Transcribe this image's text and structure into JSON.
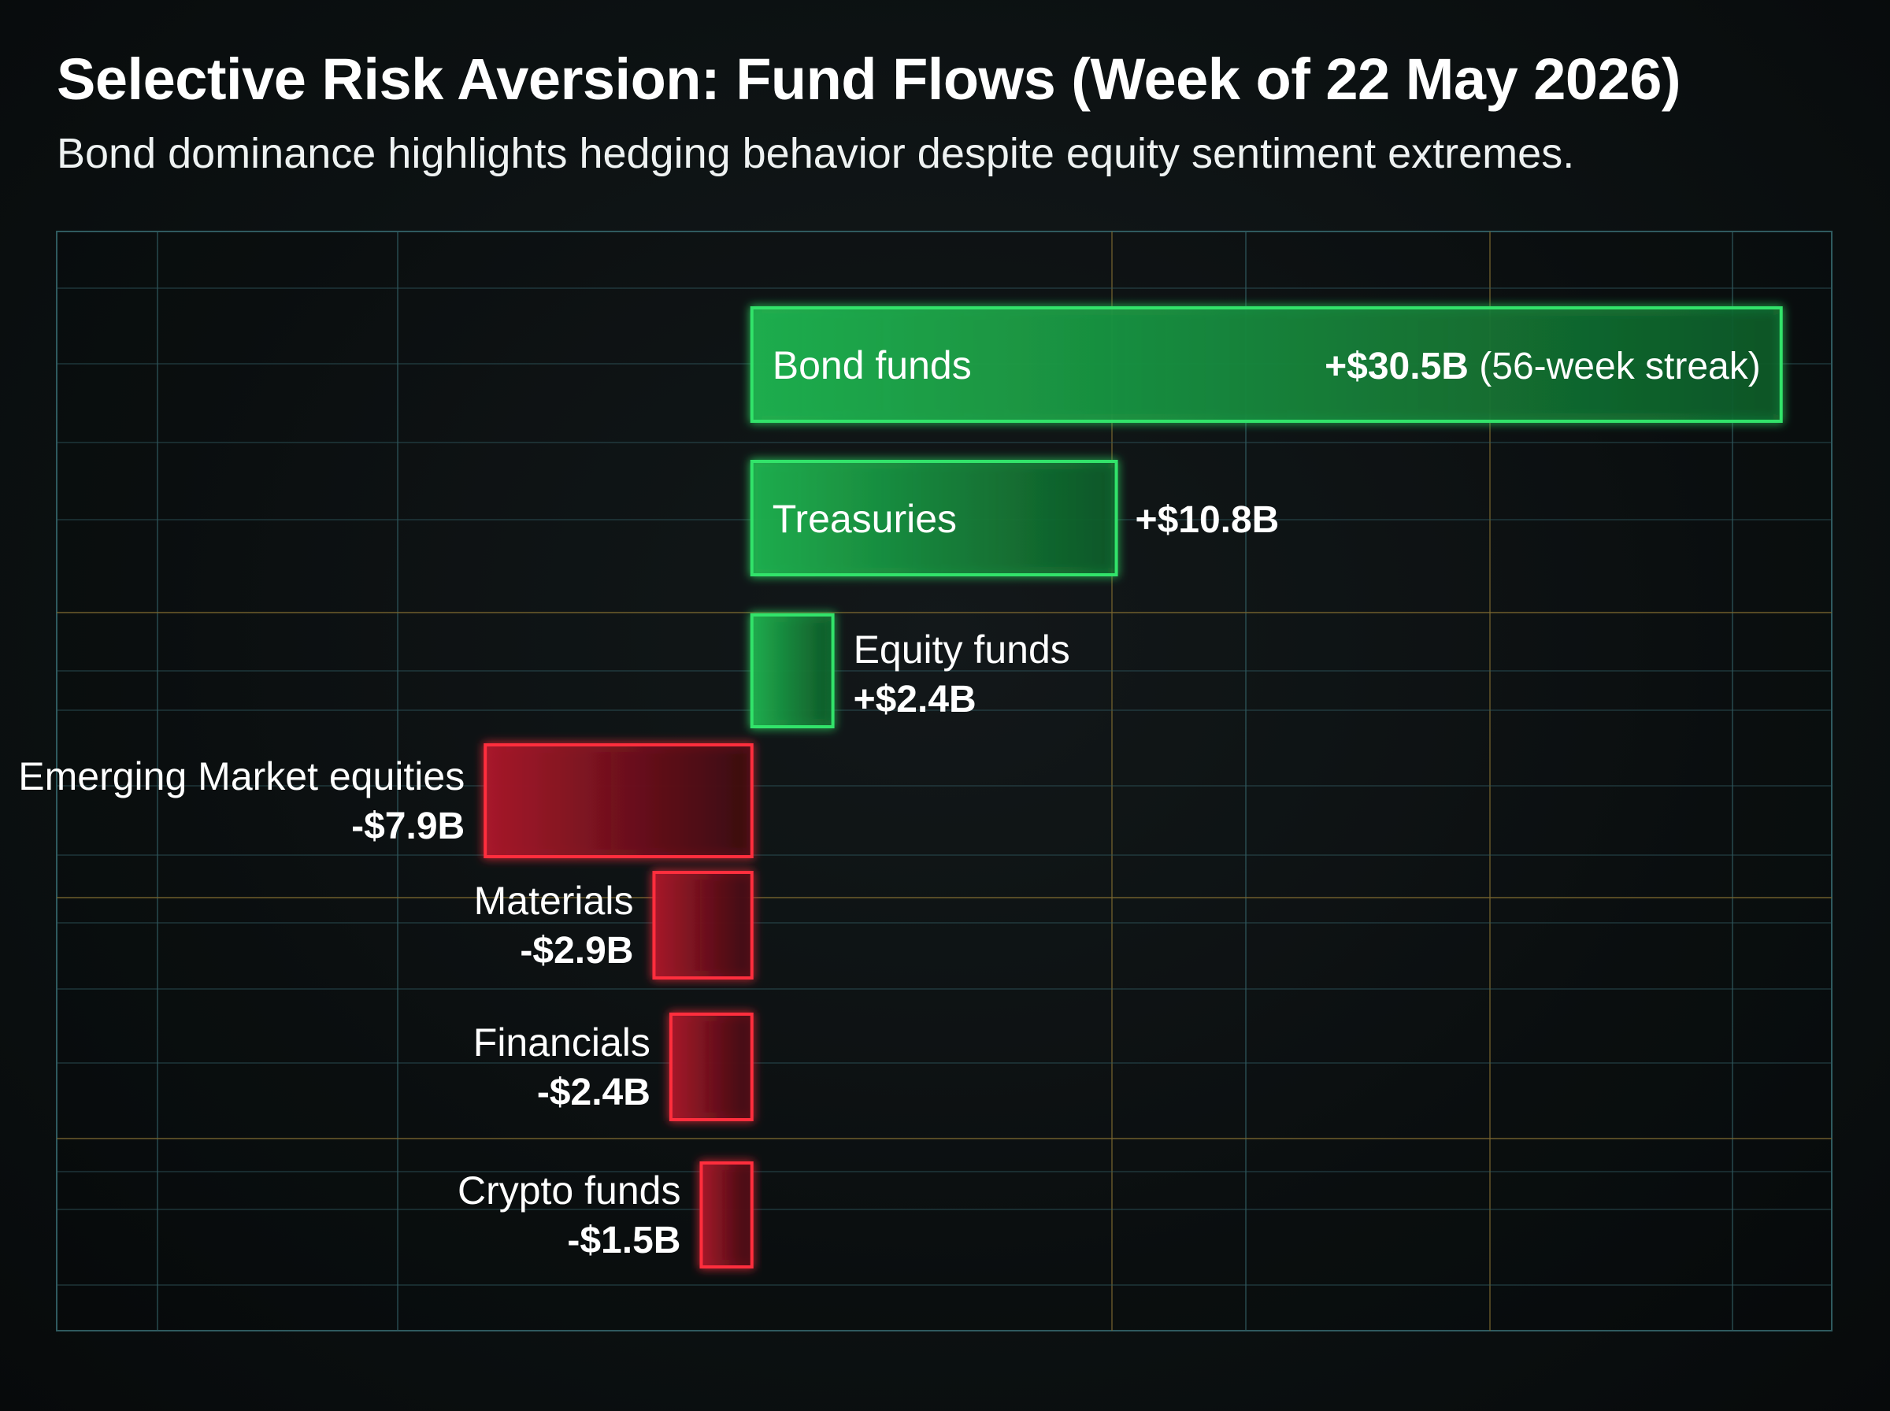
{
  "header": {
    "title": "Selective Risk Aversion: Fund Flows (Week of 22 May 2026)",
    "subtitle": "Bond dominance highlights hedging behavior despite equity sentiment extremes."
  },
  "colors": {
    "positive": "#33e36a",
    "negative": "#ff2d3d",
    "zero_line": "#9ff2f0",
    "grid_major": "#2f5a5f",
    "grid_accent": "#7a6630"
  },
  "chart_data": {
    "type": "bar",
    "orientation": "horizontal",
    "title": "Selective Risk Aversion: Fund Flows (Week of 22 May 2026)",
    "subtitle": "Bond dominance highlights hedging behavior despite equity sentiment extremes.",
    "unit": "$B",
    "categories": [
      "Bond funds",
      "Treasuries",
      "Equity funds",
      "Emerging Market equities",
      "Materials",
      "Financials",
      "Crypto funds"
    ],
    "values": [
      30.5,
      10.8,
      2.4,
      -7.9,
      -2.9,
      -2.4,
      -1.5
    ],
    "value_labels": [
      "+$30.5B",
      "+$10.8B",
      "+$2.4B",
      "-$7.9B",
      "-$2.9B",
      "-$2.4B",
      "-$1.5B"
    ],
    "annotations": [
      "(56-week streak)",
      "",
      "",
      "",
      "",
      "",
      ""
    ],
    "xlim": [
      -20.6,
      32
    ],
    "grid": true,
    "legend": "none",
    "xlabel": "",
    "ylabel": ""
  }
}
